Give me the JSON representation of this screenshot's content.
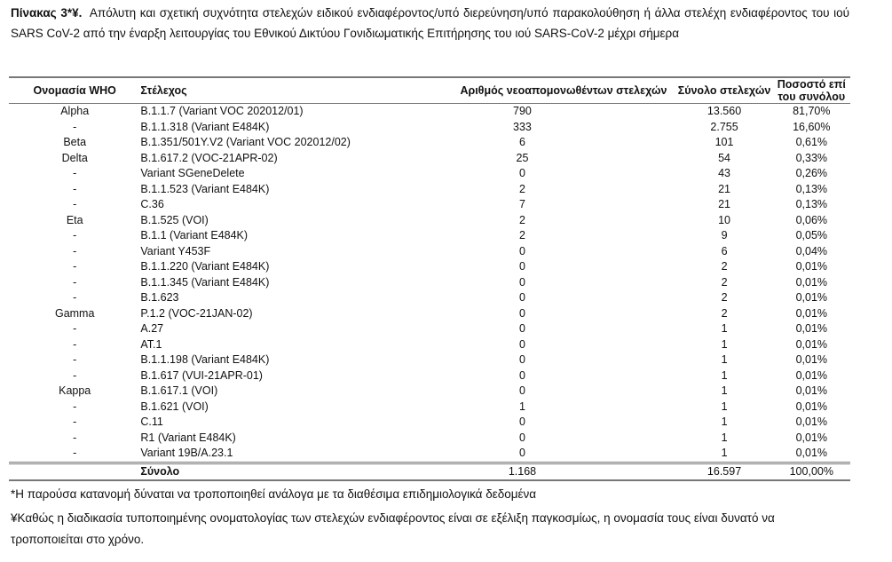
{
  "title": {
    "label": "Πίνακας 3*¥.",
    "text": "Απόλυτη και σχετική συχνότητα στελεχών ειδικού ενδιαφέροντος/υπό διερεύνηση/υπό παρακολούθηση ή άλλα στελέχη ενδιαφέροντος του ιού SARS CoV-2 από την έναρξη λειτουργίας του Εθνικού Δικτύου Γονιδιωματικής Επιτήρησης του ιού SARS-CoV-2 μέχρι σήμερα"
  },
  "table": {
    "headers": [
      "Ονομασία WHO",
      "Στέλεχος",
      "Αριθμός νεοαπομονωθέντων στελεχών",
      "Σύνολο στελεχών",
      "Ποσοστό επί του συνόλου"
    ],
    "rows": [
      [
        "Alpha",
        "B.1.1.7 (Variant VOC 202012/01)",
        "790",
        "13.560",
        "81,70%"
      ],
      [
        "-",
        "B.1.1.318 (Variant E484K)",
        "333",
        "2.755",
        "16,60%"
      ],
      [
        "Beta",
        "B.1.351/501Y.V2 (Variant VOC 202012/02)",
        "6",
        "101",
        "0,61%"
      ],
      [
        "Delta",
        "B.1.617.2 (VOC-21APR-02)",
        "25",
        "54",
        "0,33%"
      ],
      [
        "-",
        "Variant SGeneDelete",
        "0",
        "43",
        "0,26%"
      ],
      [
        "-",
        "B.1.1.523 (Variant E484K)",
        "2",
        "21",
        "0,13%"
      ],
      [
        "-",
        "C.36",
        "7",
        "21",
        "0,13%"
      ],
      [
        "Eta",
        "B.1.525 (VOI)",
        "2",
        "10",
        "0,06%"
      ],
      [
        "-",
        "B.1.1 (Variant E484K)",
        "2",
        "9",
        "0,05%"
      ],
      [
        "-",
        "Variant Y453F",
        "0",
        "6",
        "0,04%"
      ],
      [
        "-",
        "B.1.1.220 (Variant E484K)",
        "0",
        "2",
        "0,01%"
      ],
      [
        "-",
        "B.1.1.345 (Variant E484K)",
        "0",
        "2",
        "0,01%"
      ],
      [
        "-",
        "B.1.623",
        "0",
        "2",
        "0,01%"
      ],
      [
        "Gamma",
        "P.1.2 (VOC-21JAN-02)",
        "0",
        "2",
        "0,01%"
      ],
      [
        "-",
        "A.27",
        "0",
        "1",
        "0,01%"
      ],
      [
        "-",
        "AT.1",
        "0",
        "1",
        "0,01%"
      ],
      [
        "-",
        "B.1.1.198 (Variant E484K)",
        "0",
        "1",
        "0,01%"
      ],
      [
        "-",
        "B.1.617 (VUI-21APR-01)",
        "0",
        "1",
        "0,01%"
      ],
      [
        "Kappa",
        "B.1.617.1 (VOI)",
        "0",
        "1",
        "0,01%"
      ],
      [
        "-",
        "B.1.621 (VOI)",
        "1",
        "1",
        "0,01%"
      ],
      [
        "-",
        "C.11",
        "0",
        "1",
        "0,01%"
      ],
      [
        "-",
        "R1 (Variant E484K)",
        "0",
        "1",
        "0,01%"
      ],
      [
        "-",
        "Variant 19B/A.23.1",
        "0",
        "1",
        "0,01%"
      ]
    ],
    "total": [
      "",
      "Σύνολο",
      "1.168",
      "16.597",
      "100,00%"
    ]
  },
  "footnotes": [
    "*Η παρούσα κατανομή δύναται να τροποποιηθεί ανάλογα με τα διαθέσιμα επιδημιολογικά δεδομένα",
    "¥Καθώς η διαδικασία τυποποιημένης ονοματολογίας των στελεχών ενδιαφέροντος είναι σε εξέλιξη παγκοσμίως, η ονομασία τους είναι δυνατό να τροποποιείται στο χρόνο."
  ]
}
